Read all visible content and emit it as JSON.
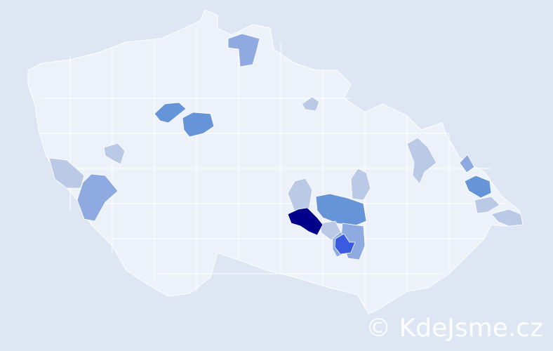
{
  "watermark": "© KdeJsme.cz",
  "colors": {
    "background": "#dde6f2",
    "land": "#edf1f9",
    "border": "#ffffff",
    "level_1": "#b9c9e6",
    "level_2": "#8eaae0",
    "level_3": "#6694d8",
    "level_4": "#3a5ae0",
    "level_5": "#00008b"
  }
}
